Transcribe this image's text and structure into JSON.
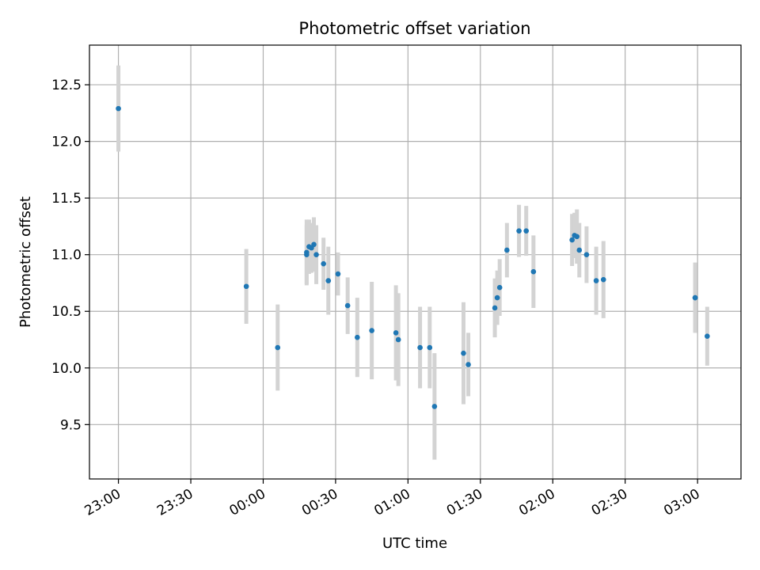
{
  "chart_data": {
    "type": "scatter",
    "title": "Photometric offset variation",
    "xlabel": "UTC time",
    "ylabel": "Photometric offset",
    "xlim": [
      "22:48",
      "03:18"
    ],
    "ylim": [
      9.02,
      12.85
    ],
    "x_ticks": [
      "23:00",
      "23:30",
      "00:00",
      "00:30",
      "01:00",
      "01:30",
      "02:00",
      "02:30",
      "03:00"
    ],
    "y_ticks": [
      "9.5",
      "10.0",
      "10.5",
      "11.0",
      "11.5",
      "12.0",
      "12.5"
    ],
    "grid": true,
    "error_bar_color": "#d3d3d3",
    "point_color": "#1f77b4",
    "points": [
      {
        "x": "23:00",
        "y": 12.29,
        "err": 0.38
      },
      {
        "x": "23:53",
        "y": 10.72,
        "err": 0.33
      },
      {
        "x": "00:06",
        "y": 10.18,
        "err": 0.38
      },
      {
        "x": "00:18",
        "y": 11.02,
        "err": 0.29
      },
      {
        "x": "00:18",
        "y": 11.0,
        "err": 0.26
      },
      {
        "x": "00:19",
        "y": 11.07,
        "err": 0.24
      },
      {
        "x": "00:20",
        "y": 11.06,
        "err": 0.22
      },
      {
        "x": "00:21",
        "y": 11.09,
        "err": 0.24
      },
      {
        "x": "00:22",
        "y": 11.0,
        "err": 0.26
      },
      {
        "x": "00:25",
        "y": 10.92,
        "err": 0.23
      },
      {
        "x": "00:27",
        "y": 10.77,
        "err": 0.3
      },
      {
        "x": "00:31",
        "y": 10.83,
        "err": 0.19
      },
      {
        "x": "00:35",
        "y": 10.55,
        "err": 0.25
      },
      {
        "x": "00:39",
        "y": 10.27,
        "err": 0.35
      },
      {
        "x": "00:45",
        "y": 10.33,
        "err": 0.43
      },
      {
        "x": "00:55",
        "y": 10.31,
        "err": 0.42
      },
      {
        "x": "00:56",
        "y": 10.25,
        "err": 0.41
      },
      {
        "x": "01:05",
        "y": 10.18,
        "err": 0.36
      },
      {
        "x": "01:09",
        "y": 10.18,
        "err": 0.36
      },
      {
        "x": "01:11",
        "y": 9.66,
        "err": 0.47
      },
      {
        "x": "01:23",
        "y": 10.13,
        "err": 0.45
      },
      {
        "x": "01:25",
        "y": 10.03,
        "err": 0.28
      },
      {
        "x": "01:36",
        "y": 10.53,
        "err": 0.26
      },
      {
        "x": "01:37",
        "y": 10.62,
        "err": 0.24
      },
      {
        "x": "01:38",
        "y": 10.71,
        "err": 0.25
      },
      {
        "x": "01:41",
        "y": 11.04,
        "err": 0.24
      },
      {
        "x": "01:46",
        "y": 11.21,
        "err": 0.23
      },
      {
        "x": "01:49",
        "y": 11.21,
        "err": 0.22
      },
      {
        "x": "01:52",
        "y": 10.85,
        "err": 0.32
      },
      {
        "x": "02:08",
        "y": 11.13,
        "err": 0.23
      },
      {
        "x": "02:09",
        "y": 11.17,
        "err": 0.2
      },
      {
        "x": "02:10",
        "y": 11.16,
        "err": 0.24
      },
      {
        "x": "02:11",
        "y": 11.04,
        "err": 0.24
      },
      {
        "x": "02:14",
        "y": 11.0,
        "err": 0.25
      },
      {
        "x": "02:18",
        "y": 10.77,
        "err": 0.3
      },
      {
        "x": "02:21",
        "y": 10.78,
        "err": 0.34
      },
      {
        "x": "02:59",
        "y": 10.62,
        "err": 0.31
      },
      {
        "x": "02:59",
        "y": 10.62,
        "err": 0.31
      },
      {
        "x": "03:04",
        "y": 10.28,
        "err": 0.26
      }
    ]
  }
}
